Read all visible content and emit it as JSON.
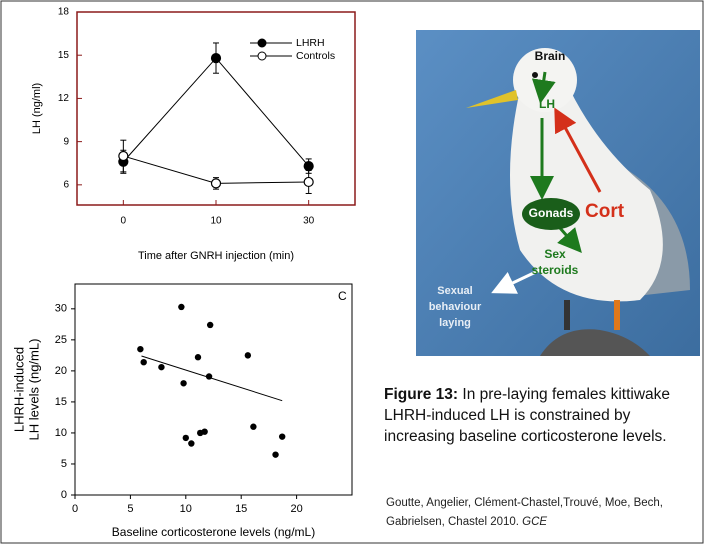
{
  "chart_data": [
    {
      "type": "line",
      "categories": [
        "0",
        "10",
        "30"
      ],
      "series": [
        {
          "name": "LHRH",
          "color": "#000000",
          "marker_fill": "#000000",
          "values": [
            7.6,
            14.8,
            7.3
          ],
          "errors": [
            0.8,
            1.05,
            0.5
          ]
        },
        {
          "name": "Controls",
          "color": "#000000",
          "marker_fill": "#ffffff",
          "values": [
            8.0,
            6.1,
            6.2
          ],
          "errors": [
            1.1,
            0.4,
            0.8
          ]
        }
      ],
      "ylim": [
        4.6,
        18
      ],
      "yticks": [
        6,
        9,
        12,
        15,
        18
      ],
      "xlabel": "Time after GNRH injection (min)",
      "ylabel": "LH (ng/ml)",
      "frame_color": "#8b1a1a"
    },
    {
      "type": "scatter",
      "annotation": "C",
      "x": [
        5.9,
        6.2,
        7.8,
        9.6,
        9.8,
        10.0,
        10.5,
        11.1,
        11.3,
        11.7,
        12.2,
        12.1,
        15.6,
        16.1,
        18.1,
        18.7
      ],
      "values": [
        23.5,
        21.4,
        20.6,
        30.3,
        18.0,
        9.2,
        8.3,
        22.2,
        10.0,
        10.2,
        27.4,
        19.1,
        22.5,
        11.0,
        6.5,
        9.4
      ],
      "color": "#000000",
      "trend": {
        "x": [
          6.0,
          18.7
        ],
        "values": [
          22.4,
          15.2
        ]
      },
      "xlim": [
        0,
        25
      ],
      "xticks": [
        0,
        5,
        10,
        15,
        20
      ],
      "ylim": [
        0,
        34
      ],
      "yticks": [
        0,
        5,
        10,
        15,
        20,
        25,
        30
      ],
      "xlabel": "Baseline corticosterone levels (ng/mL)",
      "ylabel": [
        "LHRH-induced",
        "LH levels (ng/mL)"
      ]
    }
  ],
  "photo": {
    "labels": {
      "brain": "Brain",
      "lh": "LH",
      "gonads": "Gonads",
      "cort": "Cort",
      "sex_steroids": [
        "Sex",
        "steroids"
      ],
      "behaviour": [
        "Sexual",
        "behaviour",
        "laying"
      ]
    }
  },
  "caption": {
    "bold": "Figure 13:",
    "text": " In pre-laying females kittiwake LHRH-induced LH is constrained by increasing baseline corticosterone levels."
  },
  "citation": {
    "authors": "Goutte, Angelier, Clément-Chastel,Trouvé, Moe, Bech, Gabrielsen, Chastel  2010. ",
    "journal": "GCE"
  }
}
